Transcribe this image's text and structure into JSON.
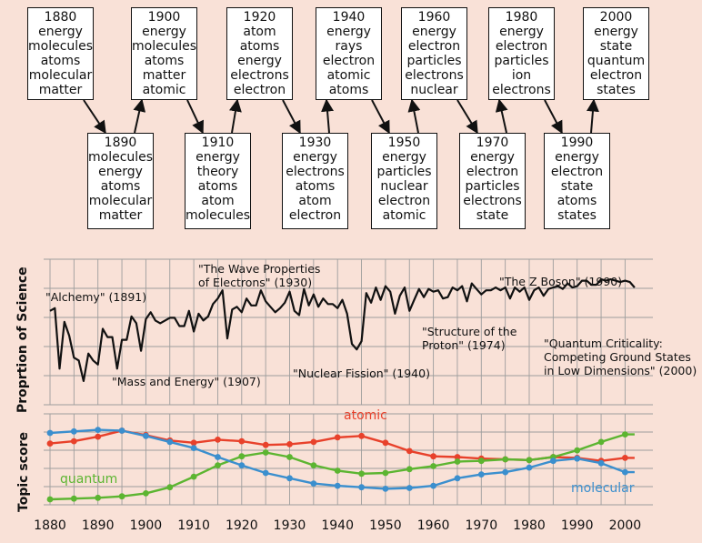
{
  "decade_boxes": [
    {
      "year": "1880",
      "words": [
        "energy",
        "molecules",
        "atoms",
        "molecular",
        "matter"
      ]
    },
    {
      "year": "1890",
      "words": [
        "molecules",
        "energy",
        "atoms",
        "molecular",
        "matter"
      ]
    },
    {
      "year": "1900",
      "words": [
        "energy",
        "molecules",
        "atoms",
        "matter",
        "atomic"
      ]
    },
    {
      "year": "1910",
      "words": [
        "energy",
        "theory",
        "atoms",
        "atom",
        "molecules"
      ]
    },
    {
      "year": "1920",
      "words": [
        "atom",
        "atoms",
        "energy",
        "electrons",
        "electron"
      ]
    },
    {
      "year": "1930",
      "words": [
        "energy",
        "electrons",
        "atoms",
        "atom",
        "electron"
      ]
    },
    {
      "year": "1940",
      "words": [
        "energy",
        "rays",
        "electron",
        "atomic",
        "atoms"
      ]
    },
    {
      "year": "1950",
      "words": [
        "energy",
        "particles",
        "nuclear",
        "electron",
        "atomic"
      ]
    },
    {
      "year": "1960",
      "words": [
        "energy",
        "electron",
        "particles",
        "electrons",
        "nuclear"
      ]
    },
    {
      "year": "1970",
      "words": [
        "energy",
        "electron",
        "particles",
        "electrons",
        "state"
      ]
    },
    {
      "year": "1980",
      "words": [
        "energy",
        "electron",
        "particles",
        "ion",
        "electrons"
      ]
    },
    {
      "year": "1990",
      "words": [
        "energy",
        "electron",
        "state",
        "atoms",
        "states"
      ]
    },
    {
      "year": "2000",
      "words": [
        "energy",
        "state",
        "quantum",
        "electron",
        "states"
      ]
    }
  ],
  "top_chart": {
    "ylabel": "Proprtion of Science",
    "annotations": [
      {
        "lines": [
          "\"Alchemy\"  (1891)"
        ]
      },
      {
        "lines": [
          "\"Mass and Energy\"  (1907)"
        ]
      },
      {
        "lines": [
          "\"The Wave Properties",
          "of Electrons\"  (1930)"
        ]
      },
      {
        "lines": [
          "\"Nuclear Fission\"  (1940)"
        ]
      },
      {
        "lines": [
          "\"Structure of the",
          "Proton\"  (1974)"
        ]
      },
      {
        "lines": [
          "\"The Z Boson\"  (1990)"
        ]
      },
      {
        "lines": [
          "\"Quantum Criticality:",
          "Competing Ground States",
          "in Low Dimensions\"  (2000)"
        ]
      }
    ]
  },
  "bottom_chart": {
    "ylabel": "Topic score",
    "series_labels": [
      {
        "text": "atomic",
        "color": "#e8412b"
      },
      {
        "text": "quantum",
        "color": "#5cb531"
      },
      {
        "text": "molecular",
        "color": "#3b8fce"
      }
    ]
  },
  "chart_data": [
    {
      "type": "line",
      "ylabel": "Proprtion of Science",
      "xlim": [
        1880,
        2002
      ],
      "grid": true,
      "series": [
        {
          "color": "#111111",
          "x": [
            1880,
            1881,
            1882,
            1883,
            1884,
            1885,
            1886,
            1887,
            1888,
            1889,
            1890,
            1891,
            1892,
            1893,
            1894,
            1895,
            1896,
            1897,
            1898,
            1899,
            1900,
            1901,
            1902,
            1903,
            1904,
            1905,
            1906,
            1907,
            1908,
            1909,
            1910,
            1911,
            1912,
            1913,
            1914,
            1915,
            1916,
            1917,
            1918,
            1919,
            1920,
            1921,
            1922,
            1923,
            1924,
            1925,
            1926,
            1927,
            1928,
            1929,
            1930,
            1931,
            1932,
            1933,
            1934,
            1935,
            1936,
            1937,
            1938,
            1939,
            1940,
            1941,
            1942,
            1943,
            1944,
            1945,
            1946,
            1947,
            1948,
            1949,
            1950,
            1951,
            1952,
            1953,
            1954,
            1955,
            1956,
            1957,
            1958,
            1959,
            1960,
            1961,
            1962,
            1963,
            1964,
            1965,
            1966,
            1967,
            1968,
            1969,
            1970,
            1971,
            1972,
            1973,
            1974,
            1975,
            1976,
            1977,
            1978,
            1979,
            1980,
            1981,
            1982,
            1983,
            1984,
            1985,
            1986,
            1987,
            1988,
            1989,
            1990,
            1991,
            1992,
            1993,
            1994,
            1995,
            1996,
            1997,
            1998,
            1999,
            2000,
            2001,
            2002
          ],
          "values": [
            0.57,
            0.59,
            0.15,
            0.49,
            0.39,
            0.23,
            0.21,
            0.06,
            0.26,
            0.21,
            0.18,
            0.44,
            0.38,
            0.38,
            0.15,
            0.36,
            0.36,
            0.53,
            0.48,
            0.28,
            0.51,
            0.56,
            0.5,
            0.48,
            0.5,
            0.52,
            0.52,
            0.46,
            0.46,
            0.57,
            0.42,
            0.55,
            0.5,
            0.53,
            0.62,
            0.66,
            0.72,
            0.37,
            0.58,
            0.6,
            0.56,
            0.66,
            0.61,
            0.61,
            0.72,
            0.64,
            0.6,
            0.56,
            0.59,
            0.63,
            0.71,
            0.57,
            0.54,
            0.73,
            0.61,
            0.69,
            0.6,
            0.66,
            0.62,
            0.62,
            0.59,
            0.65,
            0.55,
            0.33,
            0.29,
            0.35,
            0.7,
            0.63,
            0.74,
            0.65,
            0.75,
            0.71,
            0.55,
            0.68,
            0.74,
            0.57,
            0.65,
            0.73,
            0.67,
            0.73,
            0.71,
            0.72,
            0.66,
            0.67,
            0.74,
            0.72,
            0.75,
            0.64,
            0.77,
            0.73,
            0.69,
            0.72,
            0.72,
            0.74,
            0.72,
            0.74,
            0.66,
            0.74,
            0.71,
            0.74,
            0.65,
            0.72,
            0.74,
            0.68,
            0.73,
            0.74,
            0.75,
            0.73,
            0.77,
            0.74,
            0.75,
            0.79,
            0.79,
            0.76,
            0.76,
            0.8,
            0.79,
            0.8,
            0.79,
            0.78,
            0.79,
            0.78,
            0.74
          ]
        }
      ]
    },
    {
      "type": "line",
      "ylabel": "Topic score",
      "xlim": [
        1880,
        2002
      ],
      "ylim": [
        0,
        1
      ],
      "grid": true,
      "series": [
        {
          "name": "atomic",
          "color": "#e8412b",
          "x": [
            1880,
            1885,
            1890,
            1895,
            1900,
            1905,
            1910,
            1915,
            1920,
            1925,
            1930,
            1935,
            1940,
            1945,
            1950,
            1955,
            1960,
            1965,
            1970,
            1975,
            1980,
            1985,
            1990,
            1995,
            2000,
            2002
          ],
          "values": [
            0.74,
            0.77,
            0.83,
            0.91,
            0.85,
            0.78,
            0.75,
            0.79,
            0.77,
            0.72,
            0.73,
            0.76,
            0.82,
            0.84,
            0.75,
            0.64,
            0.57,
            0.56,
            0.54,
            0.53,
            0.52,
            0.56,
            0.55,
            0.51,
            0.55,
            0.55
          ]
        },
        {
          "name": "quantum",
          "color": "#5cb531",
          "x": [
            1880,
            1885,
            1890,
            1895,
            1900,
            1905,
            1910,
            1915,
            1920,
            1925,
            1930,
            1935,
            1940,
            1945,
            1950,
            1955,
            1960,
            1965,
            1970,
            1975,
            1980,
            1985,
            1990,
            1995,
            2000,
            2002
          ],
          "values": [
            0.0,
            0.01,
            0.02,
            0.04,
            0.08,
            0.16,
            0.3,
            0.45,
            0.57,
            0.62,
            0.56,
            0.45,
            0.38,
            0.34,
            0.35,
            0.4,
            0.44,
            0.5,
            0.51,
            0.53,
            0.52,
            0.56,
            0.65,
            0.76,
            0.86,
            0.86
          ]
        },
        {
          "name": "molecular",
          "color": "#3b8fce",
          "x": [
            1880,
            1885,
            1890,
            1895,
            1900,
            1905,
            1910,
            1915,
            1920,
            1925,
            1930,
            1935,
            1940,
            1945,
            1950,
            1955,
            1960,
            1965,
            1970,
            1975,
            1980,
            1985,
            1990,
            1995,
            2000,
            2002
          ],
          "values": [
            0.88,
            0.9,
            0.92,
            0.91,
            0.84,
            0.76,
            0.68,
            0.56,
            0.45,
            0.35,
            0.28,
            0.21,
            0.18,
            0.16,
            0.14,
            0.15,
            0.18,
            0.28,
            0.33,
            0.36,
            0.42,
            0.51,
            0.54,
            0.48,
            0.36,
            0.36
          ]
        }
      ]
    }
  ],
  "x_ticks": [
    "1880",
    "1890",
    "1900",
    "1910",
    "1920",
    "1930",
    "1940",
    "1950",
    "1960",
    "1970",
    "1980",
    "1990",
    "2000"
  ]
}
